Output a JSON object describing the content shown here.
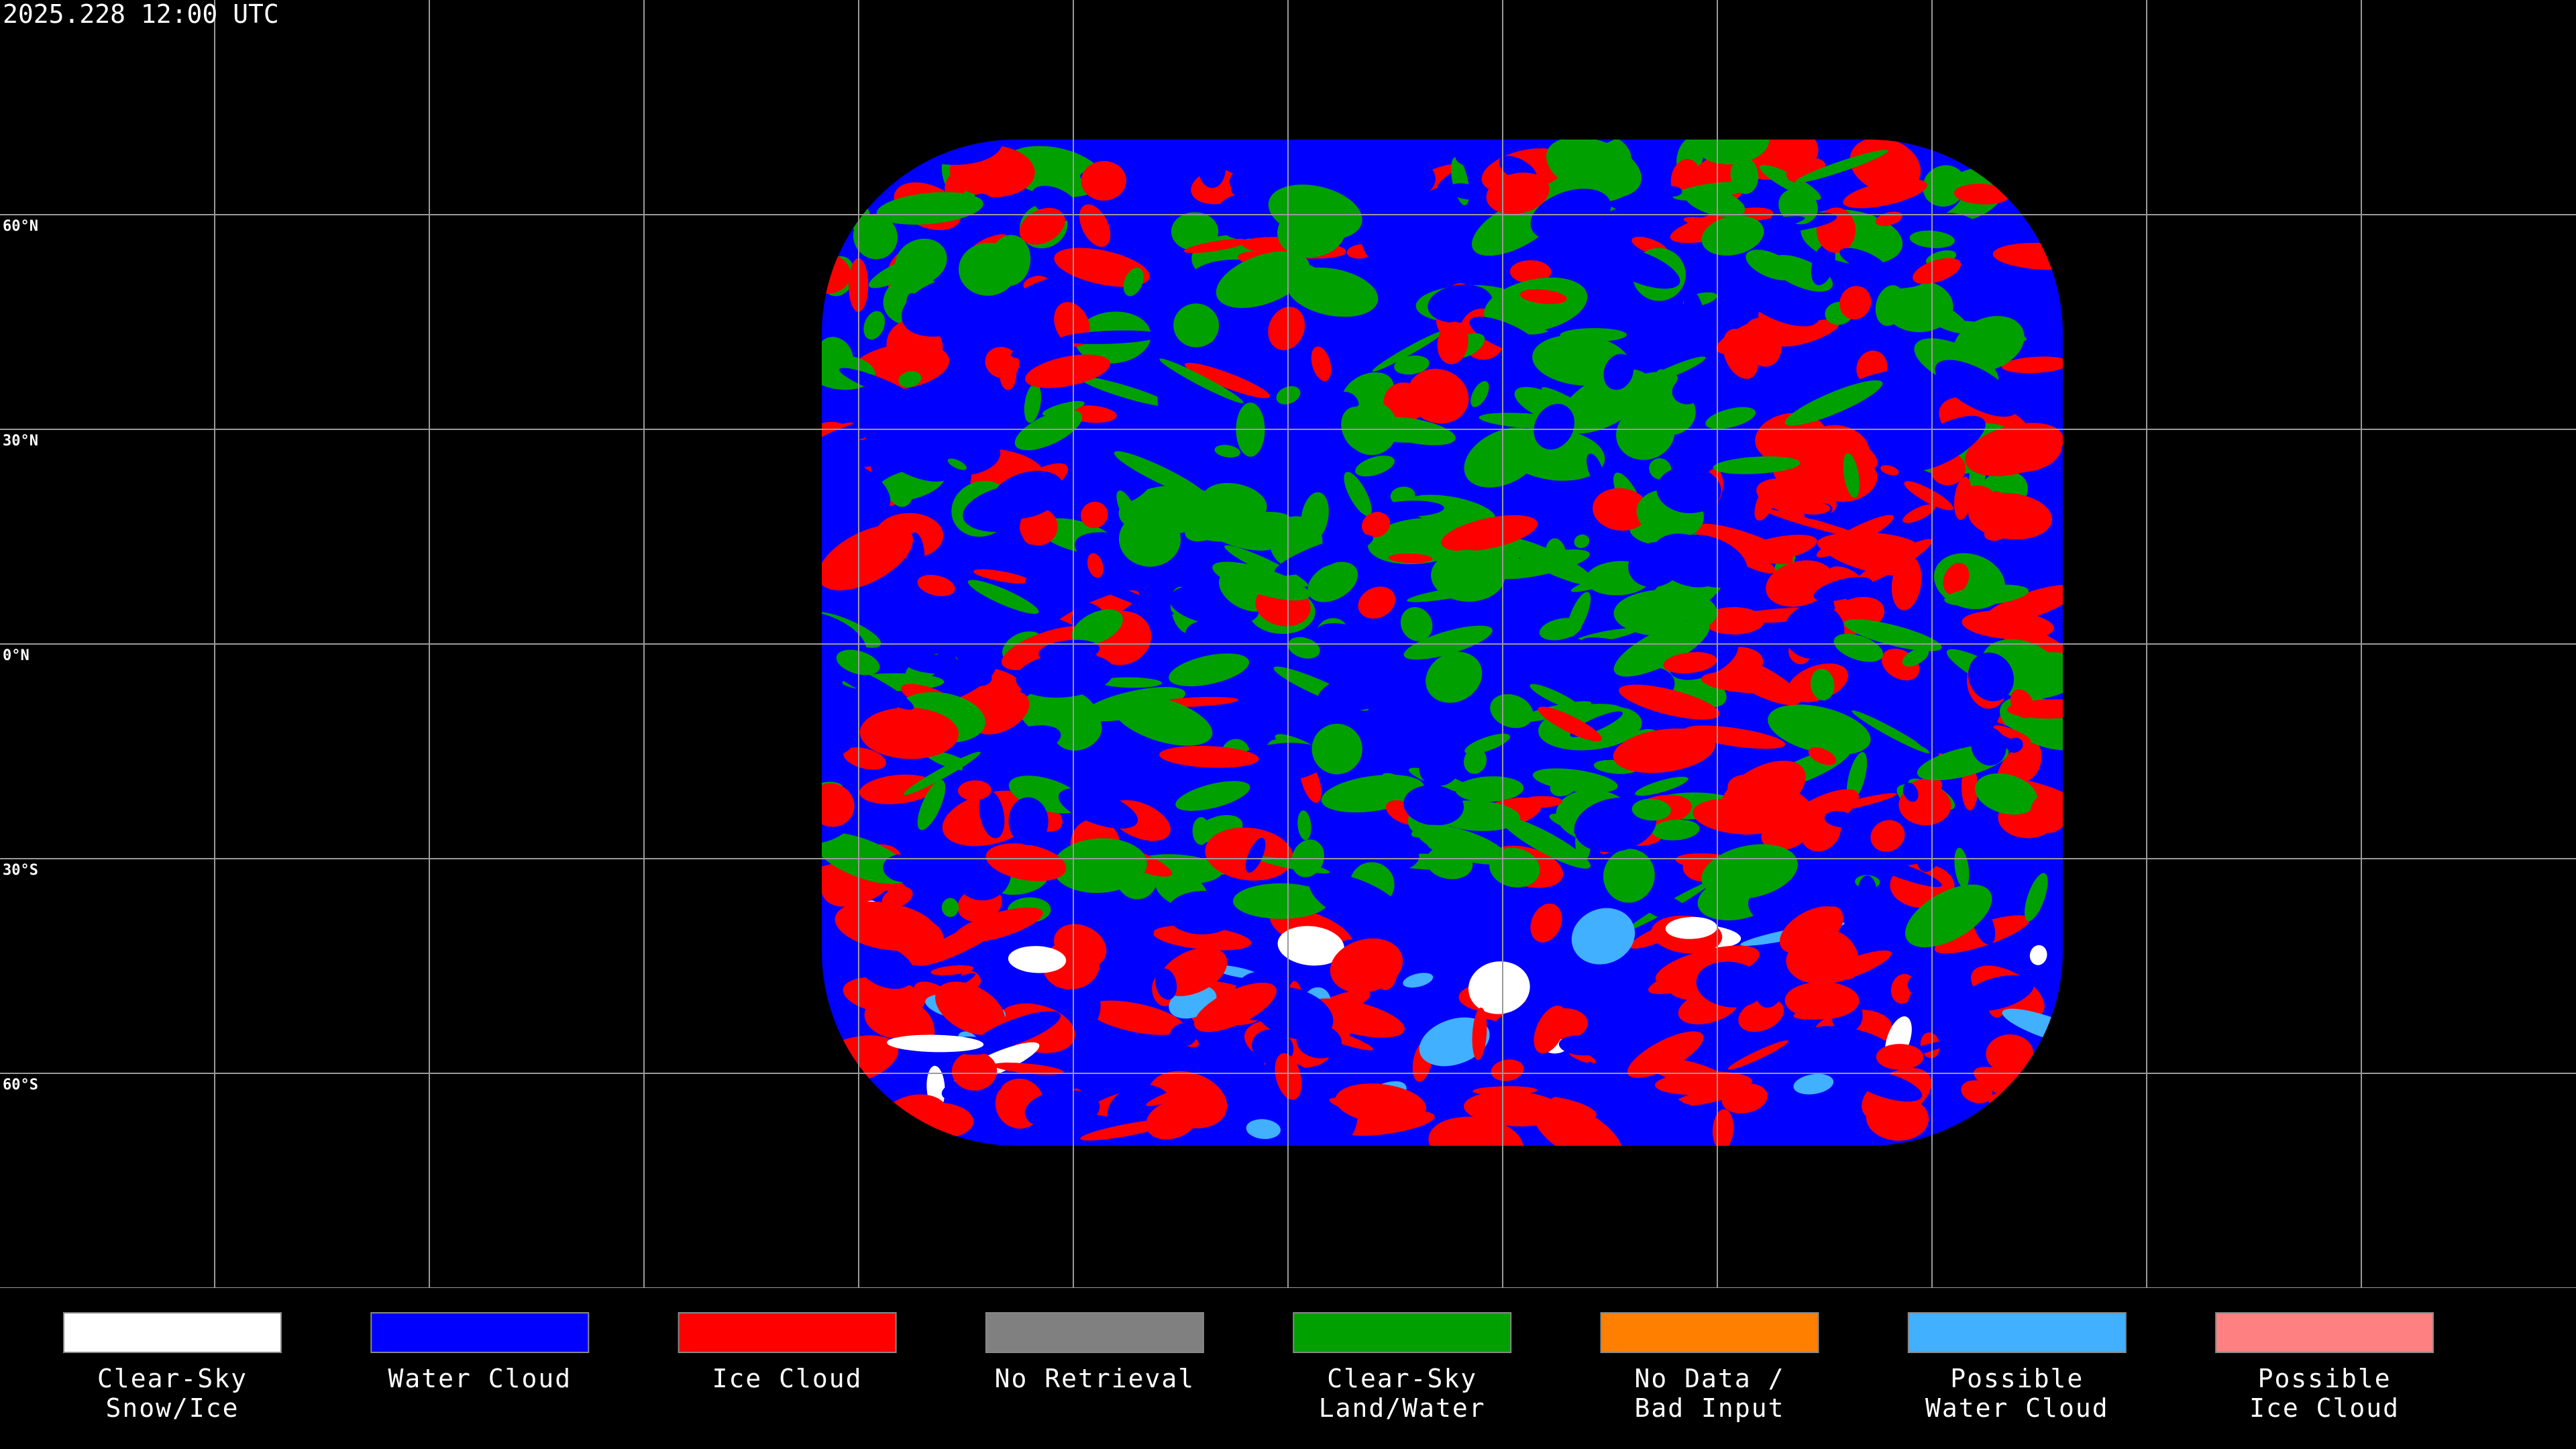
{
  "timestamp": "2025.228 12:00 UTC",
  "latitudes": [
    {
      "value": 60,
      "label": "60°N"
    },
    {
      "value": 30,
      "label": "30°N"
    },
    {
      "value": 0,
      "label": "0°N"
    },
    {
      "value": -30,
      "label": "30°S"
    },
    {
      "value": -60,
      "label": "60°S"
    }
  ],
  "legend": {
    "items": [
      {
        "lines": [
          "Clear-Sky",
          "Snow/Ice"
        ],
        "color": "#ffffff"
      },
      {
        "lines": [
          "Water Cloud"
        ],
        "color": "#0000ff"
      },
      {
        "lines": [
          "Ice Cloud"
        ],
        "color": "#ff0000"
      },
      {
        "lines": [
          "No Retrieval"
        ],
        "color": "#808080"
      },
      {
        "lines": [
          "Clear-Sky",
          "Land/Water"
        ],
        "color": "#00a000"
      },
      {
        "lines": [
          "No Data /",
          "Bad Input"
        ],
        "color": "#ff8000"
      },
      {
        "lines": [
          "Possible",
          "Water Cloud"
        ],
        "color": "#40b0ff"
      },
      {
        "lines": [
          "Possible",
          "Ice Cloud"
        ],
        "color": "#ff8080"
      }
    ]
  }
}
